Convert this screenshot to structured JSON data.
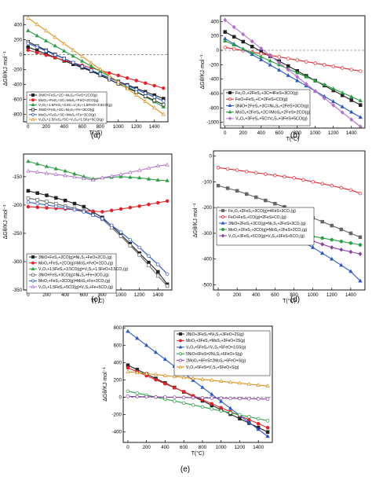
{
  "colors": {
    "black": "#222222",
    "red": "#e0242b",
    "blue": "#2a56c6",
    "green": "#2e9e44",
    "purple": "#8a3ea0",
    "orange": "#d8901c",
    "gray": "#666666",
    "teal": "#2aa198",
    "violet": "#b070c8",
    "lightblue": "#5b9bd5"
  },
  "chart_data": [
    {
      "panel": "(a)",
      "type": "line",
      "xlabel": "T(°C)",
      "ylabel": "ΔGθ/KJ·mol⁻¹",
      "xlim": [
        -50,
        1550
      ],
      "ylim": [
        -900,
        520
      ],
      "xticks": [
        0,
        200,
        400,
        600,
        800,
        1000,
        1200,
        1400
      ],
      "yticks": [
        -800,
        -600,
        -400,
        -200,
        0,
        200,
        400
      ],
      "reference_line": 0,
      "legend_position": "bottom-left",
      "series": [
        {
          "name": "3NiO+FeS₂+2C=Ni₃S₂+FeO+2CO(g)",
          "color": "black",
          "marker": "square-filled",
          "x": [
            0,
            1500
          ],
          "y": [
            100,
            -590
          ]
        },
        {
          "name": "MoO₂+FeS₂+2C=MoS₂+FeO+2CO(g)",
          "color": "red",
          "marker": "circle-filled",
          "x": [
            0,
            1500
          ],
          "y": [
            60,
            -450
          ]
        },
        {
          "name": "V₂O₃+1.5FeS₂+3.5C=V₂S₃+1.5FeO+3.5CO(g)",
          "color": "green",
          "marker": "triangle-filled",
          "x": [
            0,
            1500
          ],
          "y": [
            320,
            -700
          ]
        },
        {
          "name": "3NiO+FeS₂+3C=Ni₃S₂+Fe+3CO(g)",
          "color": "black",
          "marker": "square-open",
          "x": [
            0,
            1500
          ],
          "y": [
            170,
            -670
          ]
        },
        {
          "name": "MoO₂+FeS₂+3C=MoS₂+Fe+3CO(g)",
          "color": "blue",
          "marker": "circle-open",
          "x": [
            0,
            1500
          ],
          "y": [
            150,
            -620
          ]
        },
        {
          "name": "V₂O₃+1.5FeS₂+5C=V₂S₃+1.5Fe+5CO(g)",
          "color": "orange",
          "marker": "triangle-open",
          "x": [
            0,
            1500
          ],
          "y": [
            490,
            -800
          ]
        }
      ]
    },
    {
      "panel": "(b)",
      "type": "line",
      "xlabel": "T(°C)",
      "ylabel": "ΔGθ/KJ·mol⁻¹",
      "xlim": [
        -50,
        1550
      ],
      "ylim": [
        -1080,
        480
      ],
      "xticks": [
        0,
        200,
        400,
        600,
        800,
        1000,
        1200,
        1400
      ],
      "yticks": [
        -1000,
        -800,
        -600,
        -400,
        -200,
        0,
        200,
        400
      ],
      "reference_line": 0,
      "legend_position": "bottom-left",
      "series": [
        {
          "name": "Fe₂O₃+2FeS₂+3C=4FeS+3CO(g)",
          "color": "black",
          "marker": "square-filled",
          "x": [
            0,
            1500
          ],
          "y": [
            255,
            -760
          ]
        },
        {
          "name": "FeO+FeS₂+C=2FeS+CO(g)",
          "color": "red",
          "marker": "circle-open",
          "x": [
            0,
            1500
          ],
          "y": [
            40,
            -290
          ]
        },
        {
          "name": "3NiO+2FeS₂+3C=Ni₃S₂+2FeS+3CO(g)",
          "color": "blue",
          "marker": "triangle-filled",
          "x": [
            0,
            1500
          ],
          "y": [
            160,
            -930
          ]
        },
        {
          "name": "MoO₂+2FeS₂+2C=MoS₂+2FeS+2CO(g)",
          "color": "green",
          "marker": "triangle-filled",
          "x": [
            0,
            1500
          ],
          "y": [
            130,
            -700
          ]
        },
        {
          "name": "V₂O₃+3FeS₂+5C=V₂S₃+3FeS+5CO(g)",
          "color": "violet",
          "marker": "diamond-filled",
          "x": [
            0,
            1500
          ],
          "y": [
            420,
            -1060
          ]
        }
      ]
    },
    {
      "panel": "(c)",
      "type": "line",
      "xlabel": "T(°C)",
      "ylabel": "ΔGθ/KJ·mol⁻¹",
      "xlim": [
        -50,
        1550
      ],
      "ylim": [
        -350,
        -110
      ],
      "xticks": [
        0,
        200,
        400,
        600,
        800,
        1000,
        1200,
        1400
      ],
      "yticks": [
        -350,
        -300,
        -250,
        -200,
        -150
      ],
      "legend_position": "bottom-left",
      "series": [
        {
          "name": "3NiO+FeS₂+2CO(g)=Ni₃S₂+FeO+2CO₂(g)",
          "color": "black",
          "marker": "square-filled",
          "x": [
            0,
            200,
            400,
            600,
            800,
            1000,
            1200,
            1400,
            1500
          ],
          "y": [
            -175,
            -183,
            -192,
            -203,
            -222,
            -252,
            -285,
            -318,
            -340
          ]
        },
        {
          "name": "MoO₂+FeS₂+2CO(g)=MoS₂+FeO+2CO₂(g)",
          "color": "red",
          "marker": "circle-filled",
          "x": [
            0,
            200,
            400,
            600,
            800,
            1000,
            1200,
            1400,
            1500
          ],
          "y": [
            -203,
            -205,
            -207,
            -210,
            -212,
            -207,
            -202,
            -196,
            -193
          ]
        },
        {
          "name": "V₂O₃+1.5FeS₂+3.5CO(g)=V₂S₃+1.5FeO+3.5CO₂(g)",
          "color": "green",
          "marker": "triangle-filled",
          "x": [
            0,
            200,
            400,
            600,
            700,
            800,
            1000,
            1200,
            1400,
            1500
          ],
          "y": [
            -123,
            -132,
            -140,
            -150,
            -154,
            -152,
            -150,
            -152,
            -156,
            -157
          ]
        },
        {
          "name": "3NiO+FeS₂+3CO(g)=Ni₃S₂+Fe+3CO₂(g)",
          "color": "gray",
          "marker": "square-open",
          "x": [
            0,
            200,
            400,
            600,
            800,
            1000,
            1200,
            1400,
            1500
          ],
          "y": [
            -188,
            -194,
            -202,
            -210,
            -225,
            -255,
            -288,
            -325,
            -343
          ]
        },
        {
          "name": "MoO₂+FeS₂+3CO(g)=MoS₂+Fe+3CO₂(g)",
          "color": "blue",
          "marker": "circle-open",
          "x": [
            0,
            200,
            400,
            600,
            800,
            1000,
            1200,
            1400,
            1500
          ],
          "y": [
            -195,
            -200,
            -205,
            -212,
            -224,
            -248,
            -275,
            -305,
            -322
          ]
        },
        {
          "name": "V₂O₃+1.5FeS₂+5CO(g)=V₂S₃+Fe+5CO₂(g)",
          "color": "violet",
          "marker": "triangle-open",
          "x": [
            0,
            200,
            400,
            600,
            700,
            800,
            1000,
            1200,
            1400,
            1500
          ],
          "y": [
            -140,
            -144,
            -148,
            -153,
            -156,
            -152,
            -146,
            -139,
            -131,
            -129
          ]
        }
      ]
    },
    {
      "panel": "(d)",
      "type": "line",
      "xlabel": "T(°C)",
      "ylabel": "ΔGθ/KJ·mol⁻¹",
      "xlim": [
        -50,
        1550
      ],
      "ylim": [
        -520,
        20
      ],
      "xticks": [
        0,
        200,
        400,
        600,
        800,
        1000,
        1200,
        1400
      ],
      "yticks": [
        -500,
        -400,
        -300,
        -200,
        -100,
        0
      ],
      "legend_position": "center-left",
      "series": [
        {
          "name": "Fe₂O₃+2FeS₂+3CO(g)=4FeS+3CO₂(g)",
          "color": "gray",
          "marker": "square-filled",
          "x": [
            0,
            200,
            400,
            600,
            800,
            1000,
            1200,
            1400,
            1500
          ],
          "y": [
            -115,
            -135,
            -160,
            -185,
            -210,
            -240,
            -270,
            -300,
            -315
          ]
        },
        {
          "name": "FeO+FeS₂+CO(g)=2FeS+CO₂(g)",
          "color": "red",
          "marker": "circle-open",
          "x": [
            0,
            200,
            400,
            600,
            800,
            1000,
            1200,
            1400,
            1500
          ],
          "y": [
            -45,
            -55,
            -65,
            -75,
            -85,
            -100,
            -115,
            -132,
            -145
          ]
        },
        {
          "name": "3NiO+2FeS₂+3CO(g)=Ni₃S₂+2FeS+3CO₂(g)",
          "color": "blue",
          "marker": "triangle-filled",
          "x": [
            0,
            200,
            400,
            600,
            800,
            1000,
            1200,
            1400,
            1500
          ],
          "y": [
            -235,
            -250,
            -268,
            -288,
            -315,
            -355,
            -400,
            -448,
            -485
          ]
        },
        {
          "name": "MoO₂+2FeS₂+2CO(g)=MoS₂+2FeS+2CO₂(g)",
          "color": "green",
          "marker": "circle-filled",
          "x": [
            0,
            200,
            400,
            600,
            800,
            1000,
            1200,
            1400,
            1500
          ],
          "y": [
            -250,
            -260,
            -272,
            -285,
            -300,
            -312,
            -325,
            -338,
            -345
          ]
        },
        {
          "name": "V₂O₃+3FeS₂+5CO(g)=V₂S₃+3FeS+5CO₂(g)",
          "color": "purple",
          "marker": "diamond-filled",
          "x": [
            0,
            200,
            400,
            600,
            800,
            1000,
            1200,
            1400,
            1500
          ],
          "y": [
            -205,
            -225,
            -248,
            -272,
            -300,
            -330,
            -355,
            -372,
            -380
          ]
        }
      ]
    },
    {
      "panel": "(e)",
      "type": "line",
      "xlabel": "T(°C)",
      "ylabel": "ΔGθ/KJ·mol⁻¹",
      "xlim": [
        -50,
        1550
      ],
      "ylim": [
        -520,
        820
      ],
      "xticks": [
        0,
        200,
        400,
        600,
        800,
        1000,
        1200,
        1400
      ],
      "yticks": [
        -400,
        -200,
        0,
        200,
        400,
        600,
        800
      ],
      "reference_line": 0,
      "legend_position": "top-right",
      "series": [
        {
          "name": "3NiO+3FeS₂=Ni₃S₂+3FeO+2S(g)",
          "color": "black",
          "marker": "square-filled",
          "x": [
            0,
            1500
          ],
          "y": [
            370,
            -400
          ]
        },
        {
          "name": "MoO₂+3FeS₂=MoS₂+3FeO+2S(g)",
          "color": "red",
          "marker": "circle-filled",
          "x": [
            0,
            1500
          ],
          "y": [
            340,
            -350
          ]
        },
        {
          "name": "V₂O₃+5FeS₂=V₂S₃+5FeO+3.5S(g)",
          "color": "blue",
          "marker": "triangle-filled",
          "x": [
            0,
            1500
          ],
          "y": [
            760,
            -450
          ]
        },
        {
          "name": "5NiO+6FeS=2Ni₃S₂+6FeO+S(g)",
          "color": "green",
          "marker": "circle-open",
          "x": [
            0,
            1500
          ],
          "y": [
            70,
            -270
          ]
        },
        {
          "name": "2MoO₂+6FeS=2MoS₂+6FeO+S(g)",
          "color": "purple",
          "marker": "circle-open",
          "x": [
            0,
            1500
          ],
          "y": [
            10,
            -20
          ]
        },
        {
          "name": "V₂O₃+5FeS=V₂S₃+5FeO+S(g)",
          "color": "orange",
          "marker": "triangle-open",
          "x": [
            0,
            1500
          ],
          "y": [
            295,
            130
          ]
        }
      ]
    }
  ]
}
